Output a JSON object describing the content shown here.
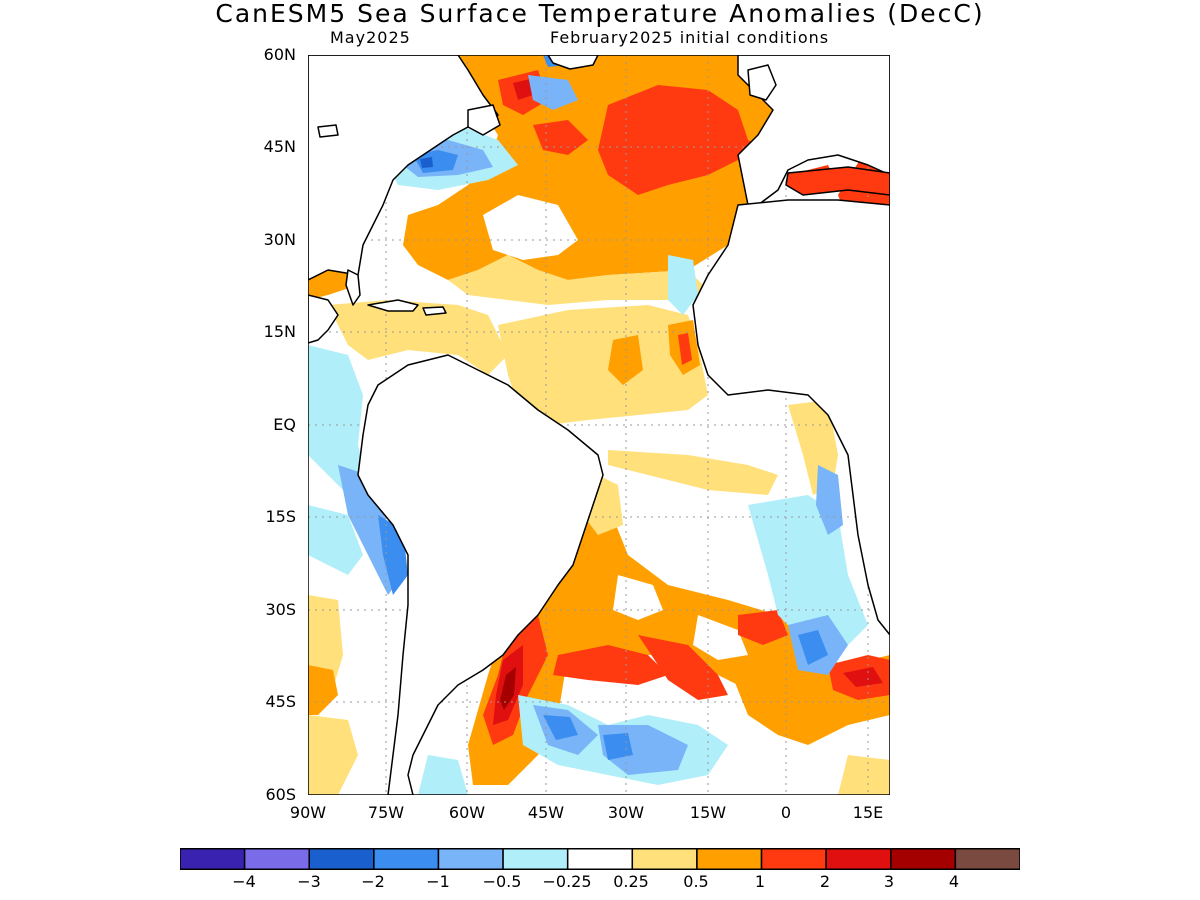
{
  "title": "CanESM5 Sea Surface Temperature Anomalies (DecC)",
  "subtitle_left": "May2025",
  "subtitle_right": "February2025 initial conditions",
  "lat_labels": [
    "60N",
    "45N",
    "30N",
    "15N",
    "EQ",
    "15S",
    "30S",
    "45S",
    "60S"
  ],
  "lon_labels": [
    "90W",
    "75W",
    "60W",
    "45W",
    "30W",
    "15W",
    "0",
    "15E"
  ],
  "colorbar": {
    "colors": [
      "#3a22b0",
      "#7a6be8",
      "#1a5fce",
      "#3b8ef0",
      "#78b4f7",
      "#b0eefa",
      "#ffffff",
      "#ffe07a",
      "#ffa000",
      "#ff3a10",
      "#e01010",
      "#a50000",
      "#7a4a40"
    ],
    "labels": [
      "−4",
      "−3",
      "−2",
      "−1",
      "−0.5",
      "−0.25",
      "0.25",
      "0.5",
      "1",
      "2",
      "3",
      "4"
    ]
  }
}
